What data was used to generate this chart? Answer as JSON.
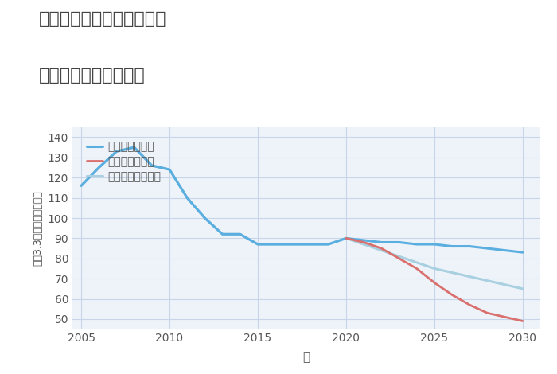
{
  "title_line1": "兵庫県豊岡市但東町小谷の",
  "title_line2": "中古戸建ての価格推移",
  "xlabel": "年",
  "ylabel": "坪（3.3㎡）単価（万円）",
  "ylim": [
    45,
    145
  ],
  "yticks": [
    50,
    60,
    70,
    80,
    90,
    100,
    110,
    120,
    130,
    140
  ],
  "xlim": [
    2004.5,
    2031
  ],
  "xticks": [
    2005,
    2010,
    2015,
    2020,
    2025,
    2030
  ],
  "background_color": "#ffffff",
  "plot_bg_color": "#eef3f9",
  "grid_color": "#c8d4e8",
  "good_scenario": {
    "label": "グッドシナリオ",
    "color": "#5baee0",
    "linewidth": 2.2,
    "x": [
      2005,
      2006,
      2007,
      2008,
      2009,
      2010,
      2011,
      2012,
      2013,
      2014,
      2015,
      2016,
      2017,
      2018,
      2019,
      2020,
      2021,
      2022,
      2023,
      2024,
      2025,
      2026,
      2027,
      2028,
      2029,
      2030
    ],
    "y": [
      116,
      125,
      133,
      135,
      126,
      124,
      110,
      100,
      92,
      92,
      87,
      87,
      87,
      87,
      87,
      90,
      89,
      88,
      88,
      87,
      87,
      86,
      86,
      85,
      84,
      83
    ]
  },
  "bad_scenario": {
    "label": "バッドシナリオ",
    "color": "#d9706e",
    "linewidth": 2.0,
    "x": [
      2020,
      2021,
      2022,
      2023,
      2024,
      2025,
      2026,
      2027,
      2028,
      2029,
      2030
    ],
    "y": [
      90,
      88,
      85,
      80,
      75,
      68,
      62,
      57,
      53,
      51,
      49
    ]
  },
  "normal_scenario": {
    "label": "ノーマルシナリオ",
    "color": "#a8d0e0",
    "linewidth": 2.2,
    "x": [
      2005,
      2006,
      2007,
      2008,
      2009,
      2010,
      2011,
      2012,
      2013,
      2014,
      2015,
      2016,
      2017,
      2018,
      2019,
      2020,
      2021,
      2022,
      2023,
      2024,
      2025,
      2026,
      2027,
      2028,
      2029,
      2030
    ],
    "y": [
      116,
      125,
      133,
      135,
      126,
      124,
      110,
      100,
      92,
      92,
      87,
      87,
      87,
      87,
      87,
      90,
      87,
      84,
      81,
      78,
      75,
      73,
      71,
      69,
      67,
      65
    ]
  }
}
